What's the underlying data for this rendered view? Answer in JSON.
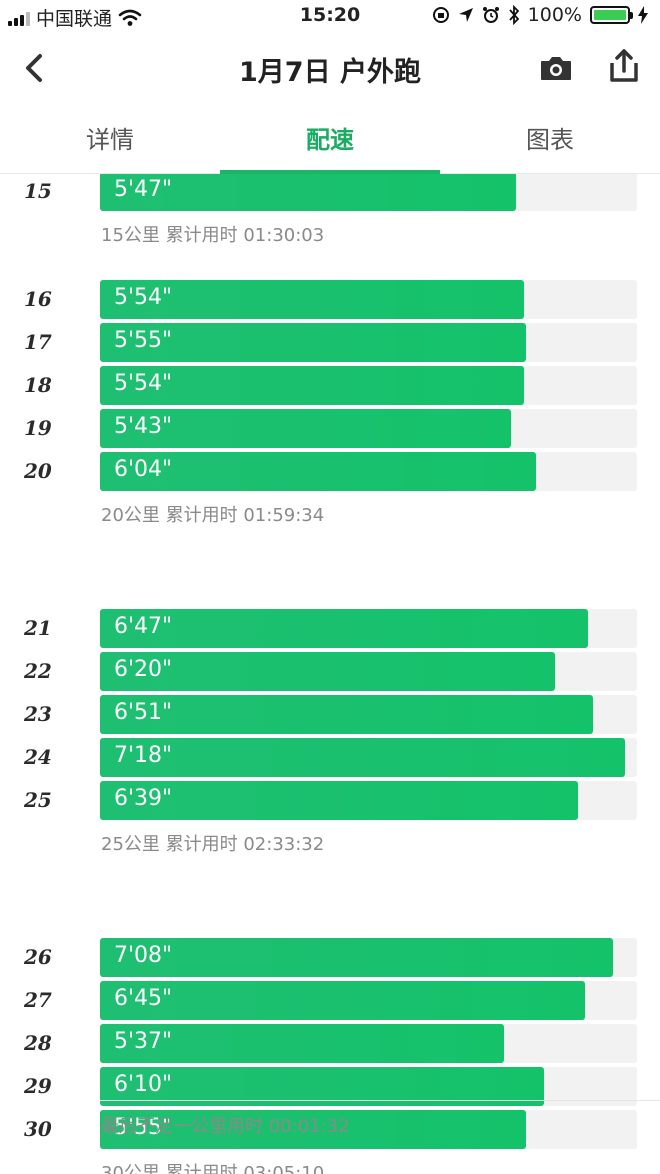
{
  "status_bar": {
    "carrier": "中国联通",
    "time": "15:20",
    "battery": "100%"
  },
  "nav": {
    "title": "1月7日 户外跑",
    "back_icon": "chevron-left-icon",
    "camera_icon": "camera-icon",
    "share_icon": "share-icon"
  },
  "tabs": [
    {
      "label": "详情",
      "active": false
    },
    {
      "label": "配速",
      "active": true
    },
    {
      "label": "图表",
      "active": false
    }
  ],
  "pace": {
    "max_seconds": 448,
    "accent_color": "#1bb566",
    "splits": [
      {
        "km": "15",
        "pace": "5'47\"",
        "seconds": 347
      },
      {
        "km": "16",
        "pace": "5'54\"",
        "seconds": 354
      },
      {
        "km": "17",
        "pace": "5'55\"",
        "seconds": 355
      },
      {
        "km": "18",
        "pace": "5'54\"",
        "seconds": 354
      },
      {
        "km": "19",
        "pace": "5'43\"",
        "seconds": 343
      },
      {
        "km": "20",
        "pace": "6'04\"",
        "seconds": 364
      },
      {
        "km": "21",
        "pace": "6'47\"",
        "seconds": 407
      },
      {
        "km": "22",
        "pace": "6'20\"",
        "seconds": 380
      },
      {
        "km": "23",
        "pace": "6'51\"",
        "seconds": 411
      },
      {
        "km": "24",
        "pace": "7'18\"",
        "seconds": 438
      },
      {
        "km": "25",
        "pace": "6'39\"",
        "seconds": 399
      },
      {
        "km": "26",
        "pace": "7'08\"",
        "seconds": 428
      },
      {
        "km": "27",
        "pace": "6'45\"",
        "seconds": 405
      },
      {
        "km": "28",
        "pace": "5'37\"",
        "seconds": 337
      },
      {
        "km": "29",
        "pace": "6'10\"",
        "seconds": 370
      },
      {
        "km": "30",
        "pace": "5'55\"",
        "seconds": 355
      }
    ],
    "summaries": [
      {
        "text": "15公里 累计用时 01:30:03"
      },
      {
        "text": "20公里 累计用时 01:59:34"
      },
      {
        "text": "25公里 累计用时 02:33:32"
      },
      {
        "text": "30公里 累计用时 03:05:10"
      }
    ],
    "final_note": "最后不足一公里用时 00:01:32"
  }
}
